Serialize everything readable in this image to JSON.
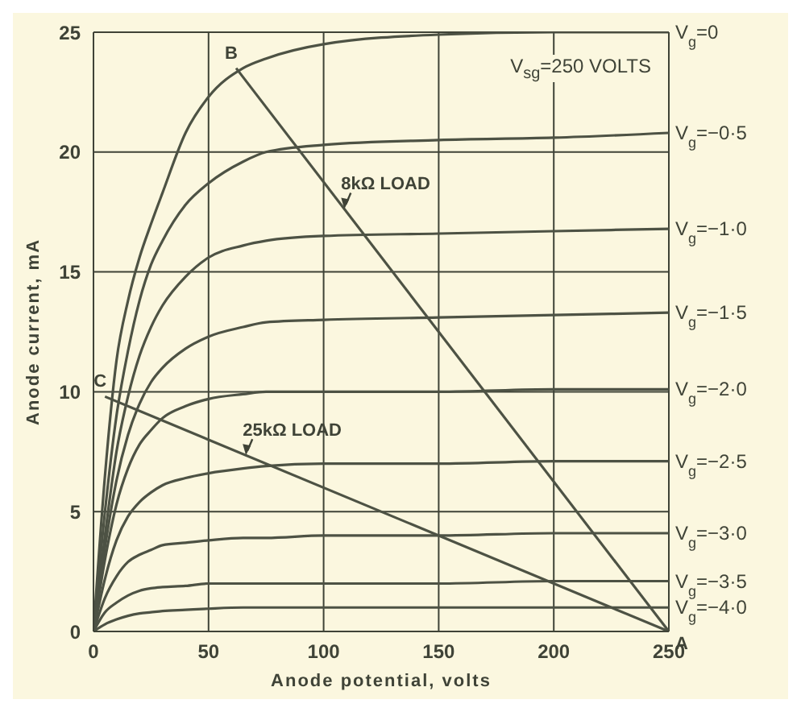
{
  "chart_data": {
    "type": "line",
    "xlabel": "Anode potential, volts",
    "ylabel": "Anode current, mA",
    "x": [
      0,
      5,
      10,
      15,
      20,
      25,
      30,
      40,
      50,
      65,
      75,
      100,
      150,
      200,
      250
    ],
    "xlim": [
      0,
      250
    ],
    "xticks": [
      0,
      50,
      100,
      150,
      200,
      250
    ],
    "ylim": [
      0,
      25
    ],
    "yticks": [
      0,
      5,
      10,
      15,
      20,
      25
    ],
    "grid": true,
    "series": [
      {
        "name": "V$_{g}$=0",
        "color": "#4d5244",
        "values": [
          0,
          6.5,
          11.3,
          13.8,
          15.6,
          17,
          18.3,
          20.8,
          22.3,
          23.5,
          23.9,
          24.5,
          24.9,
          25,
          25
        ]
      },
      {
        "name": "V$_{g}$=−0·5",
        "color": "#4d5244",
        "values": [
          0,
          5,
          9,
          11.7,
          13.8,
          15.3,
          16.3,
          17.8,
          18.7,
          19.6,
          20,
          20.3,
          20.5,
          20.6,
          20.8
        ]
      },
      {
        "name": "V$_{g}$=−1·0",
        "color": "#4d5244",
        "values": [
          0,
          4,
          7.5,
          9.8,
          11.5,
          12.7,
          13.6,
          14.8,
          15.6,
          16.1,
          16.3,
          16.5,
          16.6,
          16.7,
          16.8
        ]
      },
      {
        "name": "V$_{g}$=−1·5",
        "color": "#4d5244",
        "values": [
          0,
          3.5,
          6.3,
          8.2,
          9.5,
          10.4,
          11,
          11.8,
          12.3,
          12.7,
          12.9,
          13,
          13.1,
          13.2,
          13.3
        ]
      },
      {
        "name": "V$_{g}$=−2·0",
        "color": "#4d5244",
        "values": [
          0,
          3,
          5.3,
          6.8,
          7.8,
          8.4,
          8.9,
          9.4,
          9.7,
          9.9,
          10,
          10,
          10,
          10.1,
          10.1
        ]
      },
      {
        "name": "V$_{g}$=−2·5",
        "color": "#4d5244",
        "values": [
          0,
          2.2,
          3.8,
          4.8,
          5.4,
          5.8,
          6.1,
          6.4,
          6.6,
          6.8,
          6.9,
          7,
          7,
          7.1,
          7.1
        ]
      },
      {
        "name": "V$_{g}$=−3·0",
        "color": "#4d5244",
        "values": [
          0,
          1.4,
          2.3,
          2.9,
          3.2,
          3.4,
          3.6,
          3.7,
          3.8,
          3.9,
          3.9,
          4,
          4,
          4.1,
          4.1
        ]
      },
      {
        "name": "V$_{g}$=−3·5",
        "color": "#4d5244",
        "values": [
          0,
          0.8,
          1.2,
          1.5,
          1.7,
          1.8,
          1.85,
          1.9,
          2,
          2,
          2,
          2,
          2,
          2.1,
          2.1
        ]
      },
      {
        "name": "V$_{g}$=−4·0",
        "color": "#4d5244",
        "values": [
          0,
          0.3,
          0.5,
          0.65,
          0.75,
          0.8,
          0.85,
          0.9,
          0.95,
          1,
          1,
          1,
          1,
          1,
          1
        ]
      },
      {
        "name": "8kΩ LOAD",
        "color": "#4d5244",
        "x": [
          62,
          250
        ],
        "values": [
          23.5,
          0
        ]
      },
      {
        "name": "25kΩ LOAD",
        "color": "#4d5244",
        "x": [
          5,
          250
        ],
        "values": [
          9.8,
          0
        ]
      }
    ],
    "annotations": [
      "V$_{sg}$=250 VOLTS",
      {
        "text": "B",
        "x": 62,
        "y": 23.5
      },
      {
        "text": "C",
        "x": 5,
        "y": 9.8
      },
      {
        "text": "A",
        "x": 250,
        "y": 0
      }
    ]
  }
}
